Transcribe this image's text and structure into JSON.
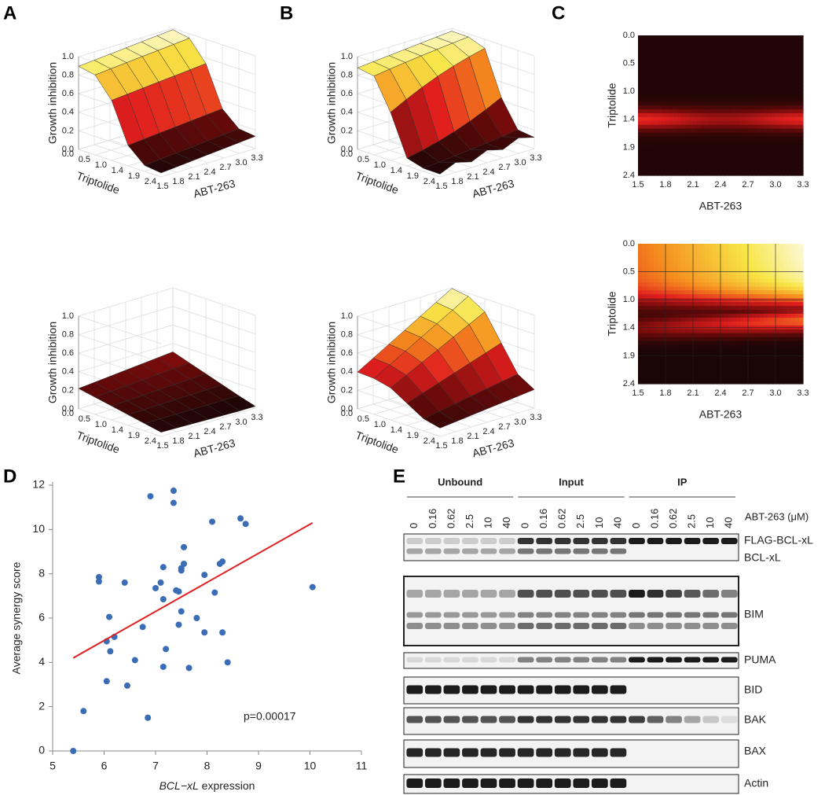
{
  "panels": [
    "A",
    "B",
    "C",
    "D",
    "E"
  ],
  "surface": {
    "z_label": "Growth inhibition",
    "z_ticks": [
      "0.0",
      "0.2",
      "0.4",
      "0.6",
      "0.8",
      "1.0"
    ],
    "triptolide_label": "Triptolide",
    "triptolide_ticks": [
      "0.0",
      "0.5",
      "1.0",
      "1.4",
      "1.9",
      "2.4"
    ],
    "abt_label": "ABT-263",
    "abt_ticks": [
      "1.5",
      "1.8",
      "2.1",
      "2.4",
      "2.7",
      "3.0",
      "3.3"
    ]
  },
  "chart_data": {
    "type": "scatter",
    "x_label": "BCL−xL expression",
    "y_label": "Average synergy score",
    "annotation": "p=0.00017",
    "color": "#3a6db5",
    "x": [
      5.4,
      5.6,
      5.9,
      5.9,
      6.05,
      6.1,
      6.12,
      6.2,
      6.05,
      6.4,
      6.45,
      6.6,
      6.75,
      6.85,
      6.9,
      7.0,
      7.1,
      7.15,
      7.15,
      7.15,
      7.2,
      7.35,
      7.35,
      7.4,
      7.45,
      7.45,
      7.5,
      7.5,
      7.5,
      7.55,
      7.55,
      7.65,
      7.8,
      7.95,
      7.95,
      8.1,
      8.15,
      8.25,
      8.3,
      8.3,
      8.4,
      8.65,
      8.75,
      10.05
    ],
    "values": [
      0,
      1.8,
      7.85,
      7.65,
      4.95,
      6.05,
      4.5,
      5.15,
      3.15,
      7.6,
      2.95,
      4.1,
      5.6,
      1.5,
      11.5,
      7.35,
      7.6,
      6.85,
      8.3,
      3.8,
      4.6,
      11.75,
      11.2,
      7.25,
      7.2,
      5.7,
      8.15,
      8.25,
      6.3,
      9.2,
      8.45,
      3.75,
      6.0,
      7.95,
      5.35,
      10.35,
      7.15,
      8.45,
      8.55,
      5.35,
      4.0,
      10.5,
      10.25,
      7.4
    ],
    "fit": {
      "x": [
        5.4,
        10.05
      ],
      "y": [
        4.2,
        10.3
      ],
      "color": "#e02020"
    },
    "xlim": [
      5,
      11
    ],
    "xticks": [
      5,
      6,
      7,
      8,
      9,
      10,
      11
    ],
    "ylim": [
      0,
      12
    ],
    "yticks": [
      0,
      2,
      4,
      6,
      8,
      10,
      12
    ]
  },
  "blot": {
    "groups": [
      "Unbound",
      "Input",
      "IP"
    ],
    "doses": [
      "0",
      "0.16",
      "0.62",
      "2.5",
      "10",
      "40"
    ],
    "dose_label": "ABT-263 (μM)",
    "bands": [
      "FLAG-BCL-xL",
      "BCL-xL",
      "BIM",
      "PUMA",
      "BID",
      "BAK",
      "BAX",
      "Actin"
    ]
  }
}
